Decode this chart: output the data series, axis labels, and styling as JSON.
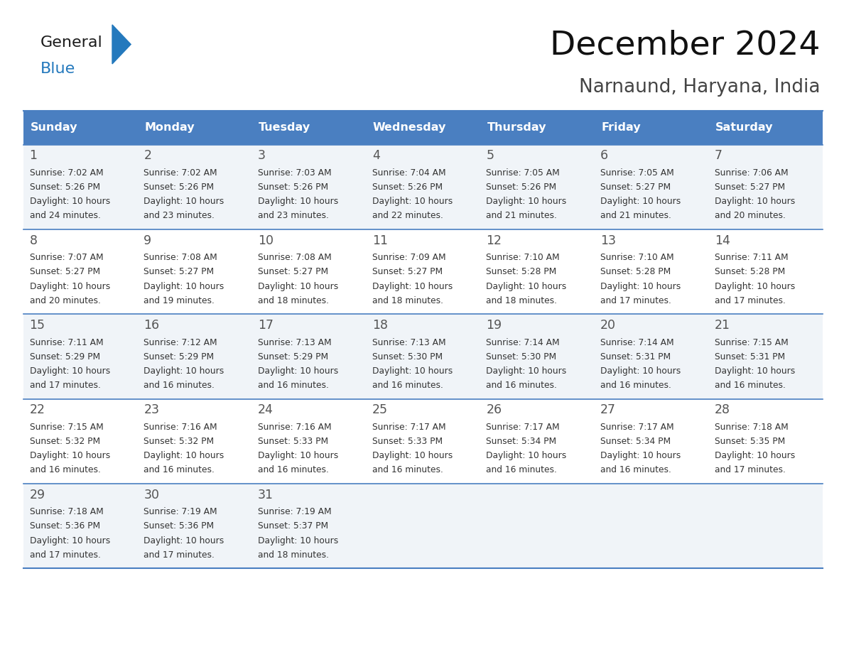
{
  "title": "December 2024",
  "subtitle": "Narnaund, Haryana, India",
  "header_bg": "#4a7fc1",
  "header_text_color": "#FFFFFF",
  "days": [
    "Sunday",
    "Monday",
    "Tuesday",
    "Wednesday",
    "Thursday",
    "Friday",
    "Saturday"
  ],
  "weeks": [
    [
      {
        "day": 1,
        "sunrise": "7:02 AM",
        "sunset": "5:26 PM",
        "daylight": "10 hours and 24 minutes"
      },
      {
        "day": 2,
        "sunrise": "7:02 AM",
        "sunset": "5:26 PM",
        "daylight": "10 hours and 23 minutes"
      },
      {
        "day": 3,
        "sunrise": "7:03 AM",
        "sunset": "5:26 PM",
        "daylight": "10 hours and 23 minutes"
      },
      {
        "day": 4,
        "sunrise": "7:04 AM",
        "sunset": "5:26 PM",
        "daylight": "10 hours and 22 minutes"
      },
      {
        "day": 5,
        "sunrise": "7:05 AM",
        "sunset": "5:26 PM",
        "daylight": "10 hours and 21 minutes"
      },
      {
        "day": 6,
        "sunrise": "7:05 AM",
        "sunset": "5:27 PM",
        "daylight": "10 hours and 21 minutes"
      },
      {
        "day": 7,
        "sunrise": "7:06 AM",
        "sunset": "5:27 PM",
        "daylight": "10 hours and 20 minutes"
      }
    ],
    [
      {
        "day": 8,
        "sunrise": "7:07 AM",
        "sunset": "5:27 PM",
        "daylight": "10 hours and 20 minutes"
      },
      {
        "day": 9,
        "sunrise": "7:08 AM",
        "sunset": "5:27 PM",
        "daylight": "10 hours and 19 minutes"
      },
      {
        "day": 10,
        "sunrise": "7:08 AM",
        "sunset": "5:27 PM",
        "daylight": "10 hours and 18 minutes"
      },
      {
        "day": 11,
        "sunrise": "7:09 AM",
        "sunset": "5:27 PM",
        "daylight": "10 hours and 18 minutes"
      },
      {
        "day": 12,
        "sunrise": "7:10 AM",
        "sunset": "5:28 PM",
        "daylight": "10 hours and 18 minutes"
      },
      {
        "day": 13,
        "sunrise": "7:10 AM",
        "sunset": "5:28 PM",
        "daylight": "10 hours and 17 minutes"
      },
      {
        "day": 14,
        "sunrise": "7:11 AM",
        "sunset": "5:28 PM",
        "daylight": "10 hours and 17 minutes"
      }
    ],
    [
      {
        "day": 15,
        "sunrise": "7:11 AM",
        "sunset": "5:29 PM",
        "daylight": "10 hours and 17 minutes"
      },
      {
        "day": 16,
        "sunrise": "7:12 AM",
        "sunset": "5:29 PM",
        "daylight": "10 hours and 16 minutes"
      },
      {
        "day": 17,
        "sunrise": "7:13 AM",
        "sunset": "5:29 PM",
        "daylight": "10 hours and 16 minutes"
      },
      {
        "day": 18,
        "sunrise": "7:13 AM",
        "sunset": "5:30 PM",
        "daylight": "10 hours and 16 minutes"
      },
      {
        "day": 19,
        "sunrise": "7:14 AM",
        "sunset": "5:30 PM",
        "daylight": "10 hours and 16 minutes"
      },
      {
        "day": 20,
        "sunrise": "7:14 AM",
        "sunset": "5:31 PM",
        "daylight": "10 hours and 16 minutes"
      },
      {
        "day": 21,
        "sunrise": "7:15 AM",
        "sunset": "5:31 PM",
        "daylight": "10 hours and 16 minutes"
      }
    ],
    [
      {
        "day": 22,
        "sunrise": "7:15 AM",
        "sunset": "5:32 PM",
        "daylight": "10 hours and 16 minutes"
      },
      {
        "day": 23,
        "sunrise": "7:16 AM",
        "sunset": "5:32 PM",
        "daylight": "10 hours and 16 minutes"
      },
      {
        "day": 24,
        "sunrise": "7:16 AM",
        "sunset": "5:33 PM",
        "daylight": "10 hours and 16 minutes"
      },
      {
        "day": 25,
        "sunrise": "7:17 AM",
        "sunset": "5:33 PM",
        "daylight": "10 hours and 16 minutes"
      },
      {
        "day": 26,
        "sunrise": "7:17 AM",
        "sunset": "5:34 PM",
        "daylight": "10 hours and 16 minutes"
      },
      {
        "day": 27,
        "sunrise": "7:17 AM",
        "sunset": "5:34 PM",
        "daylight": "10 hours and 16 minutes"
      },
      {
        "day": 28,
        "sunrise": "7:18 AM",
        "sunset": "5:35 PM",
        "daylight": "10 hours and 17 minutes"
      }
    ],
    [
      {
        "day": 29,
        "sunrise": "7:18 AM",
        "sunset": "5:36 PM",
        "daylight": "10 hours and 17 minutes"
      },
      {
        "day": 30,
        "sunrise": "7:19 AM",
        "sunset": "5:36 PM",
        "daylight": "10 hours and 17 minutes"
      },
      {
        "day": 31,
        "sunrise": "7:19 AM",
        "sunset": "5:37 PM",
        "daylight": "10 hours and 18 minutes"
      },
      null,
      null,
      null,
      null
    ]
  ],
  "cell_bg_odd": "#f0f4f8",
  "cell_bg_even": "#ffffff",
  "border_color": "#4a7fc1",
  "text_color": "#333333",
  "figsize": [
    11.88,
    9.18
  ],
  "dpi": 100
}
